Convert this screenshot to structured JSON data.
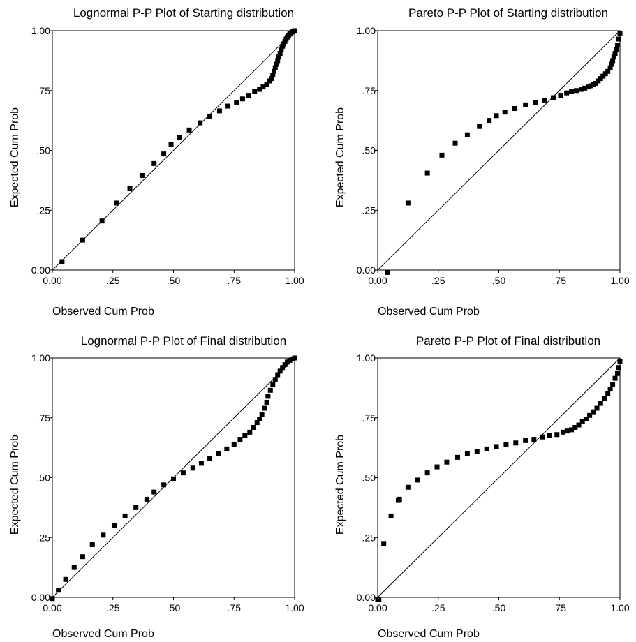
{
  "chart_data": [
    {
      "type": "scatter",
      "title": "Lognormal P-P Plot of Starting distribution",
      "xlabel": "Observed Cum Prob",
      "ylabel": "Expected Cum Prob",
      "xlim": [
        0,
        1
      ],
      "ylim": [
        0,
        1
      ],
      "x_ticks": [
        "0.00",
        ".25",
        ".50",
        ".75",
        "1.00"
      ],
      "y_ticks": [
        "0.00",
        ".25",
        ".50",
        ".75",
        "1.00"
      ],
      "reference_line": "diagonal",
      "marker": "square",
      "points": [
        [
          0.04,
          0.035
        ],
        [
          0.125,
          0.125
        ],
        [
          0.205,
          0.205
        ],
        [
          0.265,
          0.28
        ],
        [
          0.32,
          0.34
        ],
        [
          0.37,
          0.395
        ],
        [
          0.42,
          0.445
        ],
        [
          0.46,
          0.485
        ],
        [
          0.49,
          0.525
        ],
        [
          0.525,
          0.555
        ],
        [
          0.565,
          0.585
        ],
        [
          0.61,
          0.615
        ],
        [
          0.65,
          0.64
        ],
        [
          0.69,
          0.665
        ],
        [
          0.725,
          0.685
        ],
        [
          0.76,
          0.7
        ],
        [
          0.785,
          0.715
        ],
        [
          0.81,
          0.73
        ],
        [
          0.835,
          0.745
        ],
        [
          0.855,
          0.755
        ],
        [
          0.87,
          0.765
        ],
        [
          0.885,
          0.775
        ],
        [
          0.895,
          0.79
        ],
        [
          0.905,
          0.8
        ],
        [
          0.91,
          0.815
        ],
        [
          0.915,
          0.83
        ],
        [
          0.92,
          0.845
        ],
        [
          0.925,
          0.86
        ],
        [
          0.93,
          0.875
        ],
        [
          0.935,
          0.89
        ],
        [
          0.94,
          0.905
        ],
        [
          0.945,
          0.92
        ],
        [
          0.95,
          0.935
        ],
        [
          0.955,
          0.945
        ],
        [
          0.96,
          0.955
        ],
        [
          0.965,
          0.965
        ],
        [
          0.97,
          0.973
        ],
        [
          0.975,
          0.98
        ],
        [
          0.98,
          0.986
        ],
        [
          0.985,
          0.991
        ],
        [
          0.99,
          0.995
        ],
        [
          0.995,
          0.998
        ],
        [
          1.0,
          1.0
        ]
      ]
    },
    {
      "type": "scatter",
      "title": "Pareto P-P Plot of Starting distribution",
      "xlabel": "Observed Cum Prob",
      "ylabel": "Expected Cum Prob",
      "xlim": [
        0,
        1
      ],
      "ylim": [
        0,
        1
      ],
      "x_ticks": [
        "0.00",
        ".25",
        ".50",
        ".75",
        "1.00"
      ],
      "y_ticks": [
        "0.00",
        ".25",
        ".50",
        ".75",
        "1.00"
      ],
      "reference_line": "diagonal",
      "marker": "square",
      "points": [
        [
          0.04,
          -0.01
        ],
        [
          0.125,
          0.28
        ],
        [
          0.205,
          0.405
        ],
        [
          0.265,
          0.48
        ],
        [
          0.32,
          0.53
        ],
        [
          0.37,
          0.565
        ],
        [
          0.42,
          0.6
        ],
        [
          0.46,
          0.625
        ],
        [
          0.49,
          0.645
        ],
        [
          0.525,
          0.66
        ],
        [
          0.565,
          0.675
        ],
        [
          0.61,
          0.69
        ],
        [
          0.65,
          0.7
        ],
        [
          0.69,
          0.71
        ],
        [
          0.725,
          0.72
        ],
        [
          0.755,
          0.73
        ],
        [
          0.78,
          0.74
        ],
        [
          0.8,
          0.745
        ],
        [
          0.82,
          0.75
        ],
        [
          0.84,
          0.755
        ],
        [
          0.855,
          0.76
        ],
        [
          0.87,
          0.765
        ],
        [
          0.88,
          0.77
        ],
        [
          0.89,
          0.775
        ],
        [
          0.9,
          0.78
        ],
        [
          0.91,
          0.79
        ],
        [
          0.92,
          0.8
        ],
        [
          0.93,
          0.81
        ],
        [
          0.94,
          0.82
        ],
        [
          0.95,
          0.83
        ],
        [
          0.96,
          0.845
        ],
        [
          0.965,
          0.86
        ],
        [
          0.97,
          0.875
        ],
        [
          0.975,
          0.89
        ],
        [
          0.98,
          0.905
        ],
        [
          0.985,
          0.92
        ],
        [
          0.99,
          0.94
        ],
        [
          0.995,
          0.965
        ],
        [
          1.0,
          0.99
        ]
      ]
    },
    {
      "type": "scatter",
      "title": "Lognormal P-P Plot of Final distribution",
      "xlabel": "Observed Cum Prob",
      "ylabel": "Expected Cum Prob",
      "xlim": [
        0,
        1
      ],
      "ylim": [
        0,
        1
      ],
      "x_ticks": [
        "0.00",
        ".25",
        ".50",
        ".75",
        "1.00"
      ],
      "y_ticks": [
        "0.00",
        ".25",
        ".50",
        ".75",
        "1.00"
      ],
      "reference_line": "diagonal",
      "marker": "square",
      "points": [
        [
          0.0,
          -0.005
        ],
        [
          0.025,
          0.03
        ],
        [
          0.055,
          0.075
        ],
        [
          0.09,
          0.125
        ],
        [
          0.125,
          0.17
        ],
        [
          0.165,
          0.22
        ],
        [
          0.21,
          0.26
        ],
        [
          0.255,
          0.3
        ],
        [
          0.3,
          0.34
        ],
        [
          0.345,
          0.375
        ],
        [
          0.39,
          0.41
        ],
        [
          0.42,
          0.44
        ],
        [
          0.46,
          0.47
        ],
        [
          0.5,
          0.495
        ],
        [
          0.54,
          0.52
        ],
        [
          0.58,
          0.54
        ],
        [
          0.615,
          0.56
        ],
        [
          0.65,
          0.58
        ],
        [
          0.685,
          0.6
        ],
        [
          0.72,
          0.62
        ],
        [
          0.75,
          0.64
        ],
        [
          0.775,
          0.66
        ],
        [
          0.795,
          0.675
        ],
        [
          0.815,
          0.69
        ],
        [
          0.83,
          0.71
        ],
        [
          0.845,
          0.73
        ],
        [
          0.855,
          0.745
        ],
        [
          0.865,
          0.765
        ],
        [
          0.875,
          0.79
        ],
        [
          0.885,
          0.815
        ],
        [
          0.89,
          0.84
        ],
        [
          0.9,
          0.865
        ],
        [
          0.91,
          0.89
        ],
        [
          0.92,
          0.91
        ],
        [
          0.93,
          0.93
        ],
        [
          0.94,
          0.945
        ],
        [
          0.95,
          0.96
        ],
        [
          0.96,
          0.972
        ],
        [
          0.97,
          0.983
        ],
        [
          0.98,
          0.99
        ],
        [
          0.99,
          0.996
        ],
        [
          1.0,
          1.0
        ]
      ]
    },
    {
      "type": "scatter",
      "title": "Pareto P-P Plot of Final distribution",
      "xlabel": "Observed Cum Prob",
      "ylabel": "Expected Cum Prob",
      "xlim": [
        0,
        1
      ],
      "ylim": [
        0,
        1
      ],
      "x_ticks": [
        "0.00",
        ".25",
        ".50",
        ".75",
        "1.00"
      ],
      "y_ticks": [
        "0.00",
        ".25",
        ".50",
        ".75",
        "1.00"
      ],
      "reference_line": "diagonal",
      "marker": "square",
      "points": [
        [
          0.0,
          -0.01
        ],
        [
          0.005,
          -0.01
        ],
        [
          0.025,
          0.225
        ],
        [
          0.055,
          0.34
        ],
        [
          0.085,
          0.405
        ],
        [
          0.09,
          0.41
        ],
        [
          0.125,
          0.46
        ],
        [
          0.165,
          0.49
        ],
        [
          0.205,
          0.52
        ],
        [
          0.245,
          0.545
        ],
        [
          0.285,
          0.565
        ],
        [
          0.33,
          0.585
        ],
        [
          0.37,
          0.6
        ],
        [
          0.41,
          0.61
        ],
        [
          0.45,
          0.62
        ],
        [
          0.49,
          0.63
        ],
        [
          0.53,
          0.64
        ],
        [
          0.57,
          0.645
        ],
        [
          0.61,
          0.655
        ],
        [
          0.645,
          0.66
        ],
        [
          0.68,
          0.67
        ],
        [
          0.71,
          0.675
        ],
        [
          0.74,
          0.68
        ],
        [
          0.765,
          0.69
        ],
        [
          0.785,
          0.695
        ],
        [
          0.8,
          0.7
        ],
        [
          0.815,
          0.71
        ],
        [
          0.83,
          0.72
        ],
        [
          0.845,
          0.735
        ],
        [
          0.86,
          0.745
        ],
        [
          0.875,
          0.76
        ],
        [
          0.89,
          0.775
        ],
        [
          0.905,
          0.79
        ],
        [
          0.92,
          0.81
        ],
        [
          0.935,
          0.83
        ],
        [
          0.95,
          0.85
        ],
        [
          0.96,
          0.87
        ],
        [
          0.97,
          0.89
        ],
        [
          0.98,
          0.915
        ],
        [
          0.99,
          0.935
        ],
        [
          0.995,
          0.96
        ],
        [
          1.0,
          0.985
        ]
      ]
    }
  ]
}
